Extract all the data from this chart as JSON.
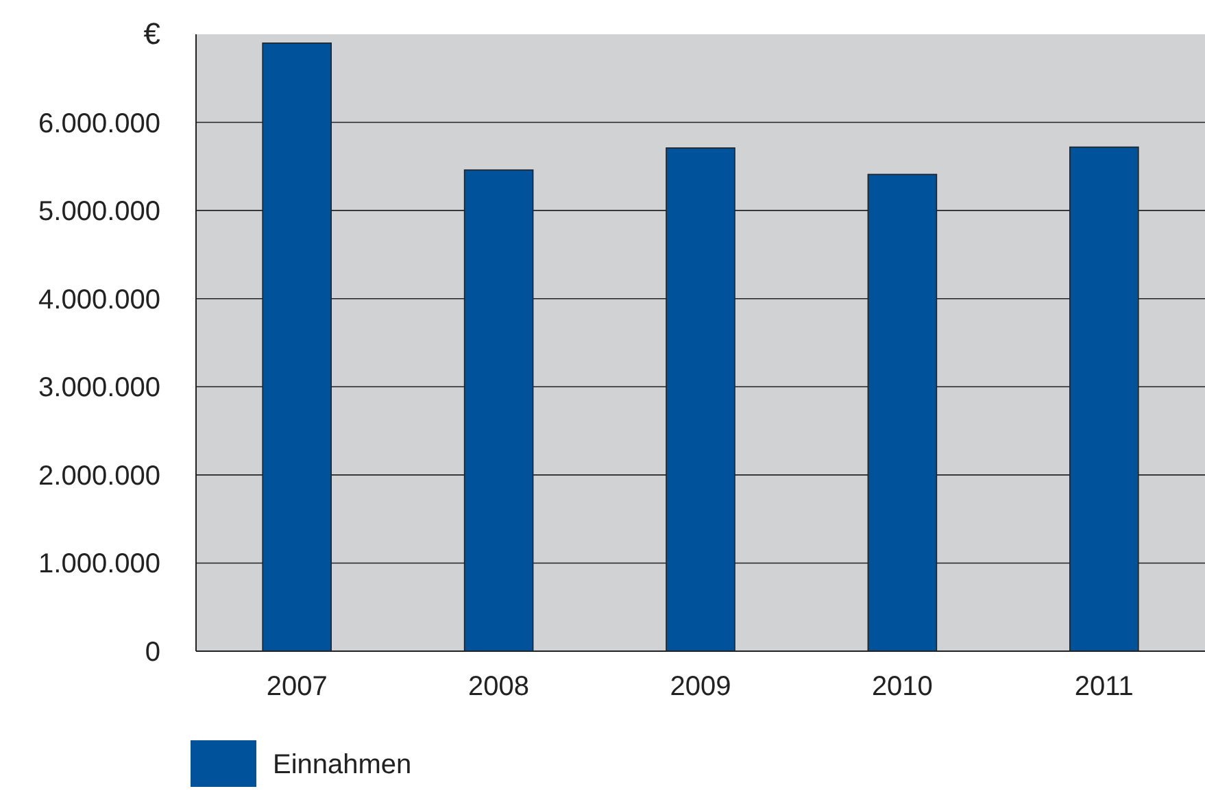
{
  "chart_data": {
    "type": "bar",
    "ylabel": "€",
    "categories": [
      "2007",
      "2008",
      "2009",
      "2010",
      "2011"
    ],
    "series": [
      {
        "name": "Einnahmen",
        "color": "#00529b",
        "values": [
          6900000,
          5460000,
          5710000,
          5410000,
          5720000
        ]
      }
    ],
    "ylim": [
      0,
      7000000
    ],
    "yticks": [
      0,
      {
        "value": 1000000,
        "label": "1.000.000"
      },
      {
        "value": 2000000,
        "label": "2.000.000"
      },
      {
        "value": 3000000,
        "label": "3.000.000"
      },
      {
        "value": 4000000,
        "label": "4.000.000"
      },
      {
        "value": 5000000,
        "label": "5.000.000"
      },
      {
        "value": 6000000,
        "label": "6.000.000"
      }
    ],
    "grid": "y",
    "legend": "bottom"
  }
}
